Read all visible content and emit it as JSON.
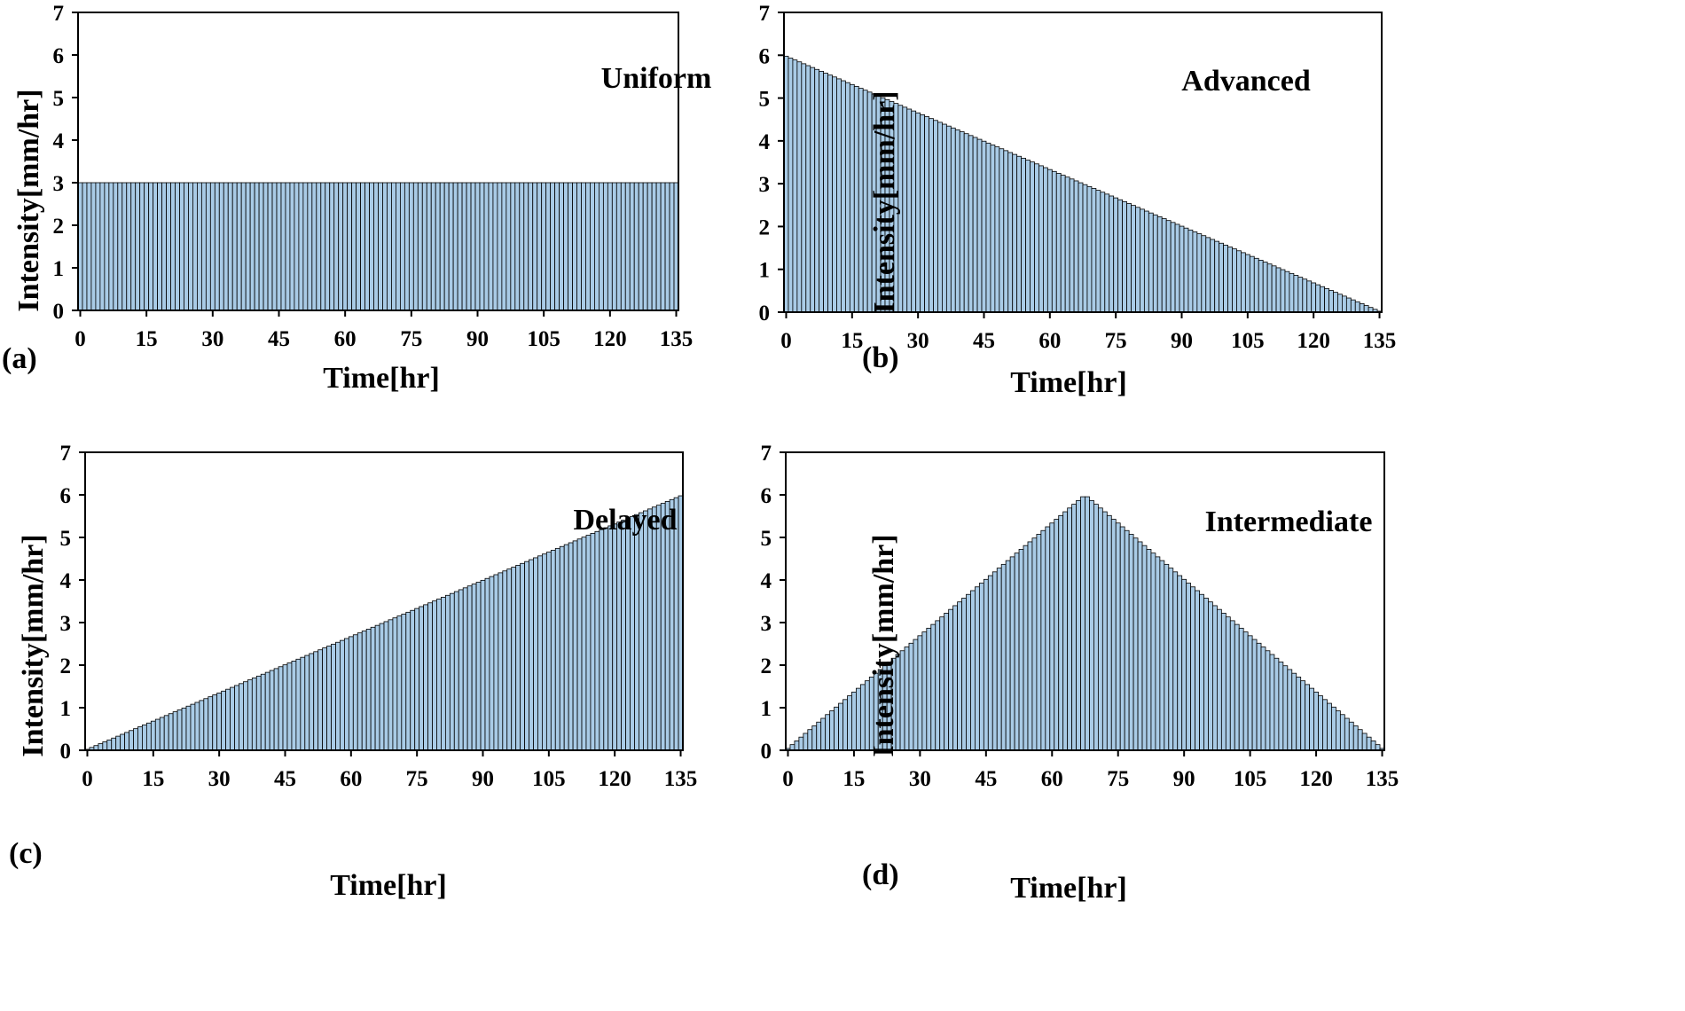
{
  "chart_data": [
    {
      "type": "bar",
      "panel_label": "(a)",
      "annotation": "Uniform",
      "xlabel": "Time[hr]",
      "ylabel": "Intensity[mm/hr]",
      "xlim": [
        0,
        136
      ],
      "ylim": [
        0,
        7
      ],
      "xticks": [
        "0",
        "15",
        "30",
        "45",
        "60",
        "75",
        "90",
        "105",
        "120",
        "135"
      ],
      "yticks": [
        "0",
        "1",
        "2",
        "3",
        "4",
        "5",
        "6",
        "7"
      ],
      "bar_count": 136,
      "pattern": "uniform",
      "peak": 3,
      "description_of_values": "constant intensity of 3 mm/hr for every hourly bar from hour 0 to 135",
      "bar_color": "#a9cbe6",
      "bar_edge_color": "#000000"
    },
    {
      "type": "bar",
      "panel_label": "(b)",
      "annotation": "Advanced",
      "xlabel": "Time[hr]",
      "ylabel": "Intensity[mm/hr]",
      "xlim": [
        0,
        136
      ],
      "ylim": [
        0,
        7
      ],
      "xticks": [
        "0",
        "15",
        "30",
        "45",
        "60",
        "75",
        "90",
        "105",
        "120",
        "135"
      ],
      "yticks": [
        "0",
        "1",
        "2",
        "3",
        "4",
        "5",
        "6",
        "7"
      ],
      "bar_count": 136,
      "pattern": "advanced",
      "peak": 6,
      "description_of_values": "linearly decreasing from 6 mm/hr at hour 0 to about 0 at hour 135",
      "bar_color": "#a9cbe6",
      "bar_edge_color": "#000000"
    },
    {
      "type": "bar",
      "panel_label": "(c)",
      "annotation": "Delayed",
      "xlabel": "Time[hr]",
      "ylabel": "Intensity[mm/hr]",
      "xlim": [
        0,
        136
      ],
      "ylim": [
        0,
        7
      ],
      "xticks": [
        "0",
        "15",
        "30",
        "45",
        "60",
        "75",
        "90",
        "105",
        "120",
        "135"
      ],
      "yticks": [
        "0",
        "1",
        "2",
        "3",
        "4",
        "5",
        "6",
        "7"
      ],
      "bar_count": 136,
      "pattern": "delayed",
      "peak": 6,
      "description_of_values": "linearly increasing from about 0 at hour 0 to 6 mm/hr at hour 135",
      "bar_color": "#a9cbe6",
      "bar_edge_color": "#000000"
    },
    {
      "type": "bar",
      "panel_label": "(d)",
      "annotation": "Intermediate",
      "xlabel": "Time[hr]",
      "ylabel": "Intensity[mm/hr]",
      "xlim": [
        0,
        136
      ],
      "ylim": [
        0,
        7
      ],
      "xticks": [
        "0",
        "15",
        "30",
        "45",
        "60",
        "75",
        "90",
        "105",
        "120",
        "135"
      ],
      "yticks": [
        "0",
        "1",
        "2",
        "3",
        "4",
        "5",
        "6",
        "7"
      ],
      "bar_count": 136,
      "pattern": "intermediate",
      "peak": 6,
      "description_of_values": "linearly rising from about 0 at hour 0 to 6 mm/hr at hour 68, then falling to about 0 at hour 135",
      "bar_color": "#a9cbe6",
      "bar_edge_color": "#000000"
    }
  ]
}
